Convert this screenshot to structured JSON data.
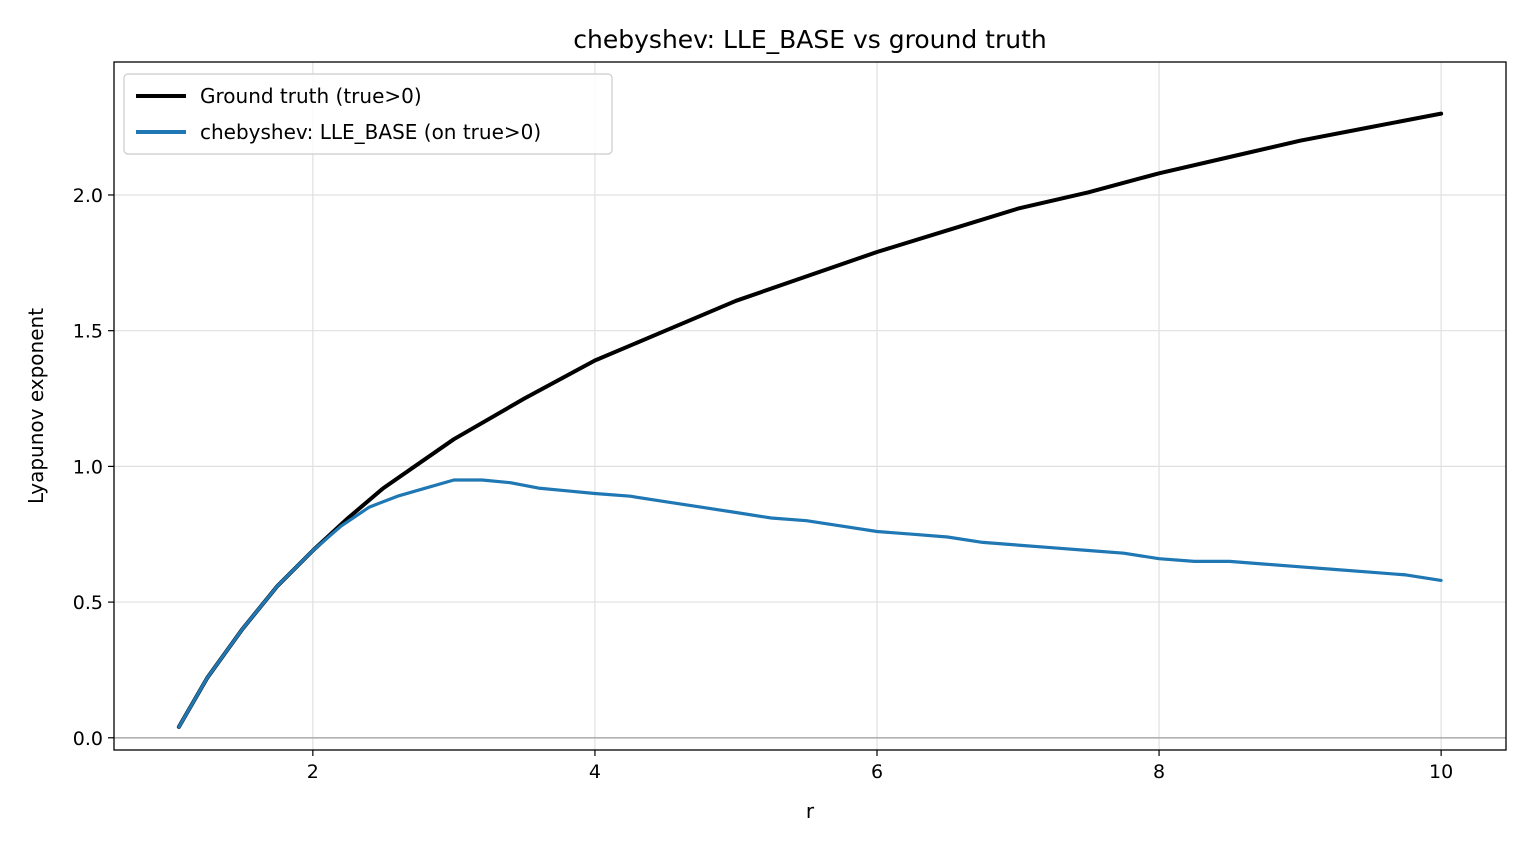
{
  "chart_data": {
    "type": "line",
    "title": "chebyshev: LLE_BASE vs ground truth",
    "xlabel": "r",
    "ylabel": "Lyapunov exponent",
    "xlim": [
      0.59,
      10.46
    ],
    "ylim": [
      -0.045,
      2.49
    ],
    "xticks": [
      2,
      4,
      6,
      8,
      10
    ],
    "xtick_labels": [
      "2",
      "4",
      "6",
      "8",
      "10"
    ],
    "yticks": [
      0.0,
      0.5,
      1.0,
      1.5,
      2.0
    ],
    "ytick_labels": [
      "0.0",
      "0.5",
      "1.0",
      "1.5",
      "2.0"
    ],
    "grid": true,
    "zero_line": true,
    "legend_position": "upper left",
    "series": [
      {
        "name": "Ground truth (true>0)",
        "color": "#000000",
        "x": [
          1.05,
          1.25,
          1.5,
          1.75,
          2.0,
          2.25,
          2.5,
          2.75,
          3.0,
          3.5,
          4.0,
          4.5,
          5.0,
          5.5,
          6.0,
          6.5,
          7.0,
          7.5,
          8.0,
          8.5,
          9.0,
          9.5,
          10.0
        ],
        "y": [
          0.04,
          0.22,
          0.4,
          0.56,
          0.69,
          0.81,
          0.92,
          1.01,
          1.1,
          1.25,
          1.39,
          1.5,
          1.61,
          1.7,
          1.79,
          1.87,
          1.95,
          2.01,
          2.08,
          2.14,
          2.2,
          2.25,
          2.3
        ]
      },
      {
        "name": "chebyshev: LLE_BASE (on true>0)",
        "color": "#1f77b4",
        "x": [
          1.05,
          1.25,
          1.5,
          1.75,
          2.0,
          2.2,
          2.4,
          2.6,
          2.8,
          3.0,
          3.2,
          3.4,
          3.6,
          3.8,
          4.0,
          4.25,
          4.5,
          4.75,
          5.0,
          5.25,
          5.5,
          5.75,
          6.0,
          6.25,
          6.5,
          6.75,
          7.0,
          7.25,
          7.5,
          7.75,
          8.0,
          8.25,
          8.5,
          8.75,
          9.0,
          9.25,
          9.5,
          9.75,
          10.0
        ],
        "y": [
          0.04,
          0.22,
          0.4,
          0.56,
          0.69,
          0.78,
          0.85,
          0.89,
          0.92,
          0.95,
          0.95,
          0.94,
          0.92,
          0.91,
          0.9,
          0.89,
          0.87,
          0.85,
          0.83,
          0.81,
          0.8,
          0.78,
          0.76,
          0.75,
          0.74,
          0.72,
          0.71,
          0.7,
          0.69,
          0.68,
          0.66,
          0.65,
          0.65,
          0.64,
          0.63,
          0.62,
          0.61,
          0.6,
          0.58
        ]
      }
    ]
  }
}
